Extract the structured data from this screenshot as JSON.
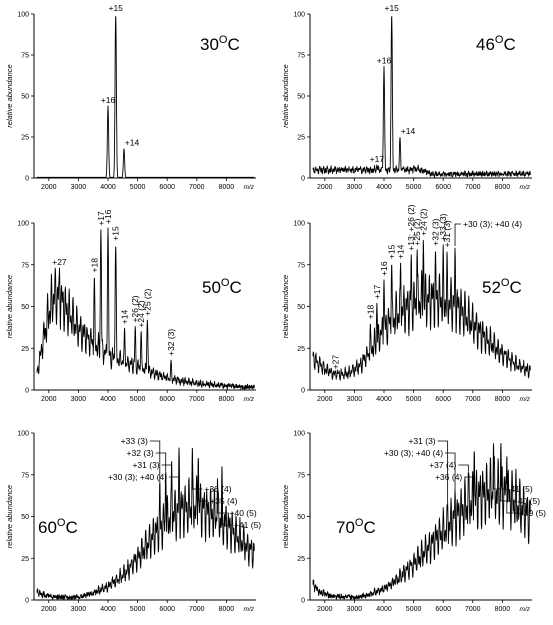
{
  "chart_data": [
    {
      "type": "line",
      "temperature_label": "30",
      "degree_symbol": "O",
      "temperature_unit": "C",
      "ylabel": "relative abundance",
      "xlabel": "m/z",
      "xlim": [
        1500,
        9000
      ],
      "ylim": [
        0,
        100
      ],
      "x_ticks": [
        2000,
        3000,
        4000,
        5000,
        6000,
        7000,
        8000
      ],
      "y_ticks": [
        0,
        25,
        50,
        75,
        100
      ],
      "peaks": [
        {
          "x": 4000,
          "y": 44,
          "label": "+16"
        },
        {
          "x": 4260,
          "y": 100,
          "label": "+15"
        },
        {
          "x": 4540,
          "y": 18,
          "label": "+14"
        }
      ],
      "envelope": []
    },
    {
      "type": "line",
      "temperature_label": "46",
      "degree_symbol": "O",
      "temperature_unit": "C",
      "ylabel": "relative abundance",
      "xlabel": "m/z",
      "xlim": [
        1500,
        9000
      ],
      "ylim": [
        0,
        100
      ],
      "x_ticks": [
        2000,
        3000,
        4000,
        5000,
        6000,
        7000,
        8000
      ],
      "y_ticks": [
        0,
        25,
        50,
        75,
        100
      ],
      "peaks": [
        {
          "x": 3760,
          "y": 8,
          "label": "+17"
        },
        {
          "x": 4000,
          "y": 68,
          "label": "+16"
        },
        {
          "x": 4260,
          "y": 100,
          "label": "+15"
        },
        {
          "x": 4540,
          "y": 25,
          "label": "+14"
        }
      ],
      "envelope": [
        {
          "x": 4850,
          "y": 6
        },
        {
          "x": 5100,
          "y": 7
        },
        {
          "x": 5350,
          "y": 5
        },
        {
          "x": 5600,
          "y": 3
        }
      ]
    },
    {
      "type": "line",
      "temperature_label": "50",
      "degree_symbol": "O",
      "temperature_unit": "C",
      "ylabel": "relative abundance",
      "xlabel": "m/z",
      "xlim": [
        1500,
        9000
      ],
      "ylim": [
        0,
        100
      ],
      "x_ticks": [
        2000,
        3000,
        4000,
        5000,
        6000,
        7000,
        8000
      ],
      "y_ticks": [
        0,
        25,
        50,
        75,
        100
      ],
      "peaks": [
        {
          "x": 2360,
          "y": 73,
          "label": "+27"
        },
        {
          "x": 3540,
          "y": 68,
          "label": "+18"
        },
        {
          "x": 3760,
          "y": 96,
          "label": "+17"
        },
        {
          "x": 4000,
          "y": 97,
          "label": "+16"
        },
        {
          "x": 4260,
          "y": 87,
          "label": "+15"
        },
        {
          "x": 4560,
          "y": 37,
          "label": "+14"
        },
        {
          "x": 4920,
          "y": 38,
          "label": "+26 (2)"
        },
        {
          "x": 5120,
          "y": 35,
          "label": "+24 (2)"
        },
        {
          "x": 5330,
          "y": 42,
          "label": "+25 (2)"
        },
        {
          "x": 6130,
          "y": 18,
          "label": "+32 (3)"
        }
      ],
      "envelope": [
        {
          "x": 1600,
          "y": 12
        },
        {
          "x": 1800,
          "y": 35
        },
        {
          "x": 2000,
          "y": 56
        },
        {
          "x": 2200,
          "y": 70
        },
        {
          "x": 2400,
          "y": 66
        },
        {
          "x": 2600,
          "y": 58
        },
        {
          "x": 2800,
          "y": 52
        },
        {
          "x": 3000,
          "y": 44
        },
        {
          "x": 3200,
          "y": 40
        },
        {
          "x": 3400,
          "y": 36
        },
        {
          "x": 3700,
          "y": 30
        },
        {
          "x": 4100,
          "y": 24
        },
        {
          "x": 4600,
          "y": 20
        },
        {
          "x": 5200,
          "y": 15
        },
        {
          "x": 5800,
          "y": 10
        },
        {
          "x": 6400,
          "y": 7
        },
        {
          "x": 7000,
          "y": 5
        },
        {
          "x": 8000,
          "y": 3
        },
        {
          "x": 8900,
          "y": 2
        }
      ]
    },
    {
      "type": "line",
      "temperature_label": "52",
      "degree_symbol": "O",
      "temperature_unit": "C",
      "ylabel": "relative abundance",
      "xlabel": "m/z",
      "xlim": [
        1500,
        9000
      ],
      "ylim": [
        0,
        100
      ],
      "x_ticks": [
        2000,
        3000,
        4000,
        5000,
        6000,
        7000,
        8000
      ],
      "y_ticks": [
        0,
        25,
        50,
        75,
        100
      ],
      "peaks": [
        {
          "x": 2360,
          "y": 10,
          "label": "+27"
        },
        {
          "x": 3540,
          "y": 40,
          "label": "+18"
        },
        {
          "x": 3760,
          "y": 52,
          "label": "+17"
        },
        {
          "x": 4000,
          "y": 66,
          "label": "+16"
        },
        {
          "x": 4260,
          "y": 76,
          "label": "+15"
        },
        {
          "x": 4560,
          "y": 76,
          "label": "+14"
        },
        {
          "x": 4920,
          "y": 81,
          "label": "+13; +26 (2)"
        },
        {
          "x": 5120,
          "y": 84,
          "label": "+25 (2)"
        },
        {
          "x": 5330,
          "y": 90,
          "label": "+24 (2)"
        },
        {
          "x": 5740,
          "y": 84,
          "label": "+32 (3)"
        },
        {
          "x": 6000,
          "y": 87,
          "label": "+33 (3)"
        },
        {
          "x": 6130,
          "y": 83,
          "label": "+31 (3)"
        },
        {
          "x": 6400,
          "y": 85,
          "label": "+30 (3); +40 (4)"
        }
      ],
      "envelope": [
        {
          "x": 1600,
          "y": 24
        },
        {
          "x": 1800,
          "y": 19
        },
        {
          "x": 2000,
          "y": 15
        },
        {
          "x": 2400,
          "y": 11
        },
        {
          "x": 2800,
          "y": 12
        },
        {
          "x": 3200,
          "y": 18
        },
        {
          "x": 3600,
          "y": 30
        },
        {
          "x": 4000,
          "y": 44
        },
        {
          "x": 4500,
          "y": 56
        },
        {
          "x": 5000,
          "y": 62
        },
        {
          "x": 5500,
          "y": 66
        },
        {
          "x": 6000,
          "y": 66
        },
        {
          "x": 6500,
          "y": 60
        },
        {
          "x": 7000,
          "y": 48
        },
        {
          "x": 7500,
          "y": 36
        },
        {
          "x": 8000,
          "y": 26
        },
        {
          "x": 8500,
          "y": 18
        },
        {
          "x": 8900,
          "y": 14
        }
      ]
    },
    {
      "type": "line",
      "temperature_label": "60",
      "degree_symbol": "O",
      "temperature_unit": "C",
      "ylabel": "relative abundance",
      "xlabel": "m/z",
      "xlim": [
        1500,
        9000
      ],
      "ylim": [
        0,
        100
      ],
      "x_ticks": [
        2000,
        3000,
        4000,
        5000,
        6000,
        7000,
        8000
      ],
      "y_ticks": [
        0,
        25,
        50,
        75,
        100
      ],
      "peaks": [
        {
          "x": 5750,
          "y": 71,
          "label": "+33 (3)"
        },
        {
          "x": 5950,
          "y": 77,
          "label": "+32 (3)"
        },
        {
          "x": 6150,
          "y": 83,
          "label": "+31 (3)"
        },
        {
          "x": 6400,
          "y": 91,
          "label": "+30 (3); +40 (4)"
        },
        {
          "x": 6850,
          "y": 91,
          "label": "+36 (4)"
        },
        {
          "x": 7050,
          "y": 85,
          "label": "+35 (4)"
        },
        {
          "x": 7700,
          "y": 73,
          "label": "+40 (5)"
        },
        {
          "x": 7850,
          "y": 80,
          "label": "+41 (5)"
        }
      ],
      "envelope": [
        {
          "x": 1600,
          "y": 6
        },
        {
          "x": 1800,
          "y": 4
        },
        {
          "x": 2200,
          "y": 2
        },
        {
          "x": 3000,
          "y": 2
        },
        {
          "x": 3500,
          "y": 5
        },
        {
          "x": 4000,
          "y": 10
        },
        {
          "x": 4500,
          "y": 18
        },
        {
          "x": 5000,
          "y": 30
        },
        {
          "x": 5500,
          "y": 46
        },
        {
          "x": 6000,
          "y": 58
        },
        {
          "x": 6500,
          "y": 66
        },
        {
          "x": 7000,
          "y": 68
        },
        {
          "x": 7500,
          "y": 63
        },
        {
          "x": 8000,
          "y": 55
        },
        {
          "x": 8500,
          "y": 43
        },
        {
          "x": 8900,
          "y": 34
        }
      ]
    },
    {
      "type": "line",
      "temperature_label": "70",
      "degree_symbol": "O",
      "temperature_unit": "C",
      "ylabel": "relative abundance",
      "xlabel": "m/z",
      "xlim": [
        1500,
        9000
      ],
      "ylim": [
        0,
        100
      ],
      "x_ticks": [
        2000,
        3000,
        4000,
        5000,
        6000,
        7000,
        8000
      ],
      "y_ticks": [
        0,
        25,
        50,
        75,
        100
      ],
      "peaks": [
        {
          "x": 6150,
          "y": 58,
          "label": "+31 (3)"
        },
        {
          "x": 6400,
          "y": 66,
          "label": "+30 (3); +40 (4)"
        },
        {
          "x": 6850,
          "y": 77,
          "label": "+37 (4)"
        },
        {
          "x": 7050,
          "y": 89,
          "label": "+36 (4)"
        },
        {
          "x": 7700,
          "y": 94,
          "label": "+41 (5)"
        },
        {
          "x": 7950,
          "y": 94,
          "label": "+40 (5)"
        },
        {
          "x": 8150,
          "y": 86,
          "label": "+39 (5)"
        }
      ],
      "envelope": [
        {
          "x": 1600,
          "y": 12
        },
        {
          "x": 1800,
          "y": 6
        },
        {
          "x": 2200,
          "y": 3
        },
        {
          "x": 3000,
          "y": 2
        },
        {
          "x": 3500,
          "y": 4
        },
        {
          "x": 4000,
          "y": 8
        },
        {
          "x": 4500,
          "y": 16
        },
        {
          "x": 5000,
          "y": 26
        },
        {
          "x": 5500,
          "y": 38
        },
        {
          "x": 6000,
          "y": 50
        },
        {
          "x": 6500,
          "y": 62
        },
        {
          "x": 7000,
          "y": 72
        },
        {
          "x": 7500,
          "y": 78
        },
        {
          "x": 8000,
          "y": 78
        },
        {
          "x": 8500,
          "y": 70
        },
        {
          "x": 8900,
          "y": 60
        }
      ]
    }
  ]
}
